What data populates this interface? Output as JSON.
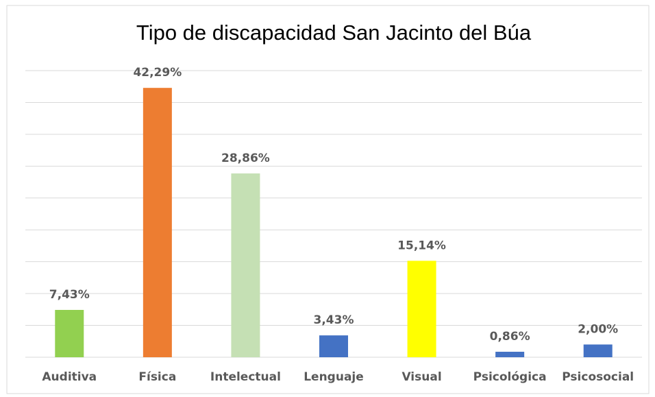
{
  "chart_data": {
    "type": "bar",
    "title": "Tipo de discapacidad San Jacinto del Búa",
    "categories": [
      "Auditiva",
      "Física",
      "Intelectual",
      "Lenguaje",
      "Visual",
      "Psicológica",
      "Psicosocial"
    ],
    "values": [
      7.43,
      42.29,
      28.86,
      3.43,
      15.14,
      0.86,
      2.0
    ],
    "value_labels": [
      "7,43%",
      "42,29%",
      "28,86%",
      "3,43%",
      "15,14%",
      "0,86%",
      "2,00%"
    ],
    "colors": [
      "#92d050",
      "#ed7d31",
      "#c5e0b4",
      "#4472c4",
      "#ffff00",
      "#4472c4",
      "#4472c4"
    ],
    "ylim": [
      0,
      45
    ],
    "yticks": [
      0,
      5,
      10,
      15,
      20,
      25,
      30,
      35,
      40,
      45
    ],
    "grid": true
  }
}
